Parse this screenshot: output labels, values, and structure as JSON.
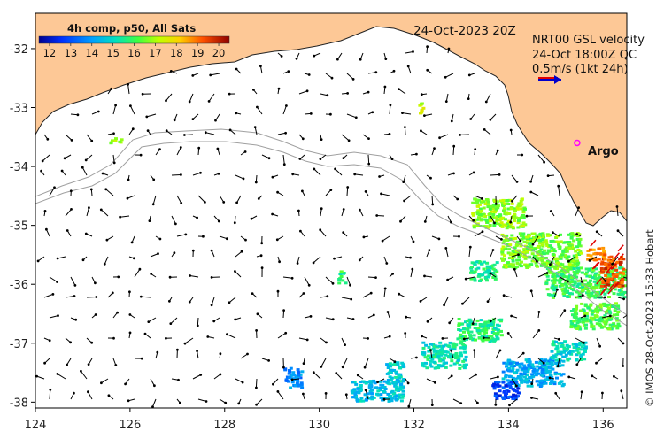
{
  "map": {
    "date_label": "24-Oct-2023 20Z",
    "colorbar": {
      "title": "4h comp, p50, All Sats",
      "ticks": [
        "12",
        "13",
        "14",
        "15",
        "16",
        "17",
        "18",
        "19",
        "20"
      ],
      "min": 11.5,
      "max": 20.5
    },
    "legend": {
      "line1": "NRT00 GSL velocity",
      "line2": "24-Oct 18:00Z QC",
      "line3": "0.5m/s (1kt 24h)"
    },
    "argo_label": "Argo",
    "x_ticks": [
      "124",
      "126",
      "128",
      "130",
      "132",
      "134",
      "136"
    ],
    "y_ticks": [
      "-32",
      "-33",
      "-34",
      "-35",
      "-36",
      "-37",
      "-38"
    ],
    "lon_range": [
      124,
      136.5
    ],
    "lat_range": [
      -31.4,
      -38.1
    ],
    "argo_position": {
      "lon": 135.45,
      "lat": -33.6
    },
    "credit": "© IMOS 28-Oct-2023 15:33 Hobart",
    "colors": {
      "land": "#fdc896",
      "coast": "#222222",
      "isobath": "#a0a0a0",
      "arrow": "#000000",
      "argo": "#ff00ff",
      "legend_arrow_red": "#e00000",
      "legend_arrow_blue": "#0000cc"
    }
  }
}
